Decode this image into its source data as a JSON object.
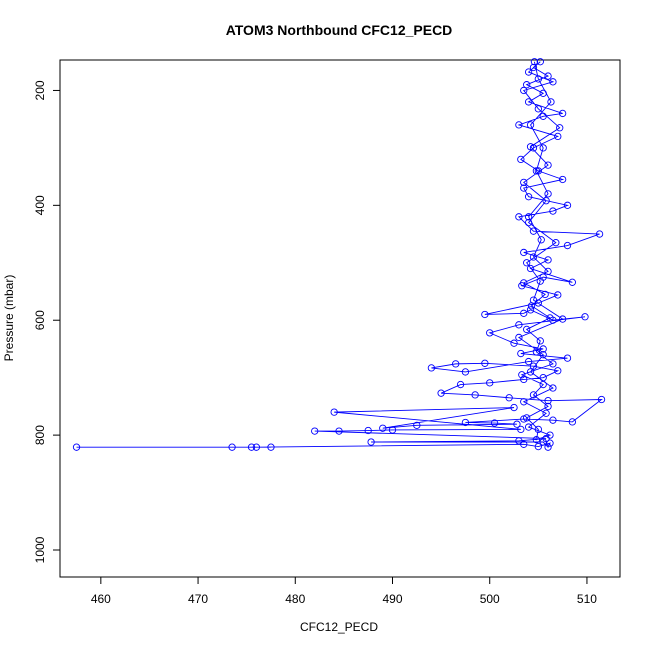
{
  "chart_data": {
    "type": "line",
    "title": "ATOM3 Northbound CFC12_PECD",
    "xlabel": "CFC12_PECD",
    "ylabel": "Pressure (mbar)",
    "xlim": [
      455.8,
      513.4
    ],
    "ylim": [
      1047,
      147
    ],
    "y_reversed": true,
    "grid": false,
    "x_ticks": [
      460,
      470,
      480,
      490,
      500,
      510
    ],
    "y_ticks": [
      200,
      400,
      600,
      800,
      1000
    ],
    "series_color": "#0000ff",
    "marker": "open-circle",
    "series": [
      {
        "values": [
          [
            457.5,
            821
          ],
          [
            473.5,
            821
          ],
          [
            475.5,
            821
          ],
          [
            477.5,
            821
          ],
          [
            476.0,
            821
          ],
          [
            503.5,
            816
          ],
          [
            505.0,
            820
          ],
          [
            506.2,
            814
          ],
          [
            506.0,
            821
          ],
          [
            505.5,
            812
          ],
          [
            487.8,
            812
          ],
          [
            503.0,
            810
          ],
          [
            505.8,
            806
          ],
          [
            482.0,
            793
          ],
          [
            484.5,
            793
          ],
          [
            487.5,
            792
          ],
          [
            490.0,
            791
          ],
          [
            503.2,
            790
          ],
          [
            484.0,
            760
          ],
          [
            502.5,
            752
          ],
          [
            489.0,
            788
          ],
          [
            492.5,
            783
          ],
          [
            502.8,
            781
          ],
          [
            500.5,
            779
          ],
          [
            497.5,
            778
          ],
          [
            503.5,
            772
          ],
          [
            506.5,
            774
          ],
          [
            508.5,
            777
          ],
          [
            511.5,
            738
          ],
          [
            506.0,
            740
          ],
          [
            502.0,
            735
          ],
          [
            498.5,
            730
          ],
          [
            495.0,
            727
          ],
          [
            497.0,
            712
          ],
          [
            500.0,
            709
          ],
          [
            503.5,
            703
          ],
          [
            505.5,
            700
          ],
          [
            507.0,
            688
          ],
          [
            504.5,
            680
          ],
          [
            499.5,
            675
          ],
          [
            496.5,
            676
          ],
          [
            494.0,
            683
          ],
          [
            497.5,
            690
          ],
          [
            504.0,
            672
          ],
          [
            508.0,
            666
          ],
          [
            503.2,
            658
          ],
          [
            505.5,
            650
          ],
          [
            502.5,
            640
          ],
          [
            500.0,
            622
          ],
          [
            503.0,
            608
          ],
          [
            509.8,
            594
          ],
          [
            506.5,
            600
          ],
          [
            504.2,
            582
          ],
          [
            503.5,
            588
          ],
          [
            499.5,
            590
          ],
          [
            505.0,
            570
          ],
          [
            507.0,
            556
          ],
          [
            503.3,
            540
          ],
          [
            505.5,
            525
          ],
          [
            508.5,
            534
          ],
          [
            504.2,
            510
          ],
          [
            506.0,
            495
          ],
          [
            503.5,
            482
          ],
          [
            508.0,
            470
          ],
          [
            511.3,
            450
          ],
          [
            504.5,
            445
          ],
          [
            503.0,
            420
          ],
          [
            506.5,
            410
          ],
          [
            508.0,
            400
          ],
          [
            504.0,
            385
          ],
          [
            503.5,
            370
          ],
          [
            507.5,
            355
          ],
          [
            505.0,
            340
          ],
          [
            503.2,
            320
          ],
          [
            504.5,
            300
          ],
          [
            507.0,
            280
          ],
          [
            503.0,
            260
          ],
          [
            505.5,
            245
          ],
          [
            507.5,
            240
          ],
          [
            504.0,
            220
          ],
          [
            505.5,
            205
          ],
          [
            503.8,
            190
          ],
          [
            506.0,
            175
          ],
          [
            504.5,
            160
          ],
          [
            505.2,
            150
          ],
          [
            504.0,
            168
          ],
          [
            506.5,
            185
          ],
          [
            503.5,
            200
          ],
          [
            505.0,
            232
          ],
          [
            507.2,
            265
          ],
          [
            504.2,
            298
          ],
          [
            506.0,
            330
          ],
          [
            503.5,
            360
          ],
          [
            505.8,
            392
          ],
          [
            504.0,
            430
          ],
          [
            506.8,
            465
          ],
          [
            503.8,
            500
          ],
          [
            505.2,
            532
          ],
          [
            504.5,
            565
          ],
          [
            507.5,
            598
          ],
          [
            503.0,
            630
          ],
          [
            505.5,
            660
          ],
          [
            504.2,
            690
          ],
          [
            506.5,
            718
          ],
          [
            503.5,
            742
          ],
          [
            505.8,
            762
          ],
          [
            504.0,
            786
          ],
          [
            506.2,
            800
          ],
          [
            504.8,
            808
          ],
          [
            505.0,
            790
          ],
          [
            503.8,
            770
          ],
          [
            506.0,
            750
          ],
          [
            504.5,
            730
          ],
          [
            505.5,
            712
          ],
          [
            503.3,
            695
          ],
          [
            506.5,
            676
          ],
          [
            504.8,
            655
          ],
          [
            505.2,
            636
          ],
          [
            503.8,
            616
          ],
          [
            506.2,
            596
          ],
          [
            504.3,
            575
          ],
          [
            505.7,
            555
          ],
          [
            503.5,
            535
          ],
          [
            506.0,
            515
          ],
          [
            504.5,
            490
          ],
          [
            505.3,
            460
          ],
          [
            504.0,
            420
          ],
          [
            506.0,
            380
          ],
          [
            504.8,
            340
          ],
          [
            505.5,
            300
          ],
          [
            504.2,
            260
          ],
          [
            506.3,
            220
          ],
          [
            505.0,
            180
          ],
          [
            504.6,
            150
          ]
        ]
      }
    ]
  }
}
